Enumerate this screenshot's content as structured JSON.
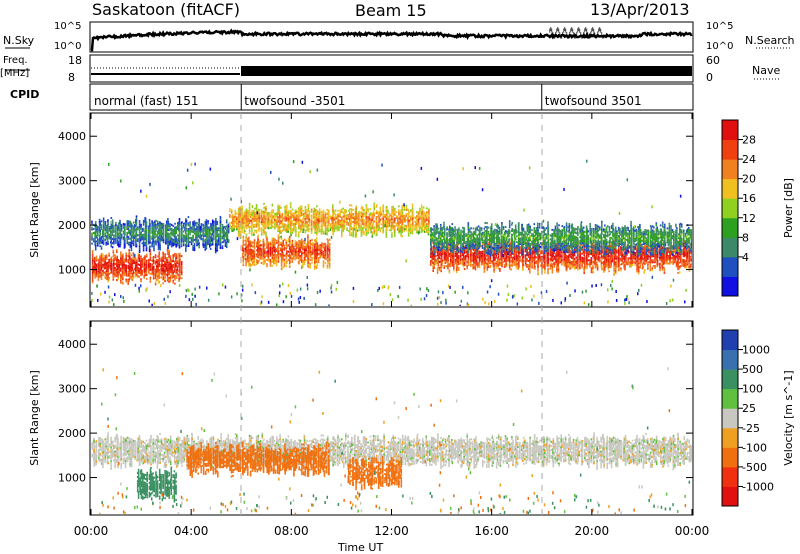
{
  "header": {
    "station": "Saskatoon (fitACF)",
    "beam": "Beam 15",
    "date": "13/Apr/2013"
  },
  "strip_panels": {
    "noise": {
      "left_label": "N.Sky",
      "right_label": "N.Search",
      "left_ticks": [
        "10^5",
        "10^0"
      ],
      "right_ticks": [
        "10^5",
        "10^0"
      ]
    },
    "freq": {
      "left_label_line1": "Freq.",
      "left_label_line2": "[MHz]",
      "right_label": "Nave",
      "left_ticks": [
        "18",
        "8"
      ],
      "right_ticks": [
        "60",
        "0"
      ]
    },
    "cpid": {
      "label": "CPID",
      "segments": [
        {
          "name": "normal (fast) 151",
          "start": 0,
          "end": 6
        },
        {
          "name": "twofsound -3501",
          "start": 6,
          "end": 18
        },
        {
          "name": "twofsound 3501",
          "start": 18,
          "end": 24
        }
      ]
    }
  },
  "x_axis": {
    "label": "Time UT",
    "ticks": [
      "00:00",
      "04:00",
      "08:00",
      "12:00",
      "16:00",
      "20:00",
      "00:00"
    ]
  },
  "power_colorbar": {
    "label": "Power [dB]",
    "ticks": [
      "28",
      "24",
      "20",
      "16",
      "12",
      "8",
      "4"
    ],
    "colors": [
      "#1010e0",
      "#2050c0",
      "#3a8a6a",
      "#2ea020",
      "#8fd020",
      "#f0c020",
      "#f08020",
      "#f04010",
      "#e01010"
    ]
  },
  "velocity_colorbar": {
    "label": "Velocity [m s^-1]",
    "ticks": [
      "1000",
      "500",
      "100",
      "25",
      "-25",
      "-100",
      "-500",
      "-1000"
    ],
    "colors": [
      "#2040b0",
      "#3a70b0",
      "#3a9060",
      "#60c040",
      "#c8c8c0",
      "#f0a020",
      "#f07010",
      "#f03010",
      "#e01010"
    ]
  },
  "chart_data": [
    {
      "type": "heatmap",
      "title": "Power [dB]",
      "xlabel": "Time UT",
      "ylabel": "Slant Range [km]",
      "xlim": [
        0,
        24
      ],
      "ylim": [
        180,
        4500
      ],
      "y_ticks": [
        1000,
        2000,
        3000,
        4000
      ],
      "x_ticks_hours": [
        0,
        4,
        8,
        12,
        16,
        20,
        24
      ],
      "colorbar_range_db": [
        0,
        30
      ],
      "echo_bands": [
        {
          "t_start": 0,
          "t_end": 3.6,
          "range_center_km": 1050,
          "power_db": 26
        },
        {
          "t_start": 0,
          "t_end": 5.5,
          "range_center_km": 1800,
          "power_db": 8
        },
        {
          "t_start": 5.5,
          "t_end": 13.5,
          "range_center_km": 2100,
          "power_db": 20
        },
        {
          "t_start": 6,
          "t_end": 9.5,
          "range_center_km": 1400,
          "power_db": 24
        },
        {
          "t_start": 13.5,
          "t_end": 24,
          "range_center_km": 1300,
          "power_db": 26
        },
        {
          "t_start": 13.5,
          "t_end": 24,
          "range_center_km": 1700,
          "power_db": 10
        }
      ]
    },
    {
      "type": "heatmap",
      "title": "Velocity [m s^-1]",
      "xlabel": "Time UT",
      "ylabel": "Slant Range [km]",
      "xlim": [
        0,
        24
      ],
      "ylim": [
        180,
        4500
      ],
      "y_ticks": [
        1000,
        2000,
        3000,
        4000
      ],
      "x_ticks_hours": [
        0,
        4,
        8,
        12,
        16,
        20,
        24
      ],
      "colorbar_range_ms": [
        -1000,
        1000
      ],
      "echo_bands": [
        {
          "t_start": 0,
          "t_end": 24,
          "range_center_km": 1600,
          "velocity_ms": 0
        },
        {
          "t_start": 3.8,
          "t_end": 9.5,
          "range_center_km": 1400,
          "velocity_ms": -200
        },
        {
          "t_start": 10.2,
          "t_end": 12.4,
          "range_center_km": 1100,
          "velocity_ms": -200
        },
        {
          "t_start": 1.8,
          "t_end": 3.4,
          "range_center_km": 850,
          "velocity_ms": 150
        }
      ]
    }
  ]
}
